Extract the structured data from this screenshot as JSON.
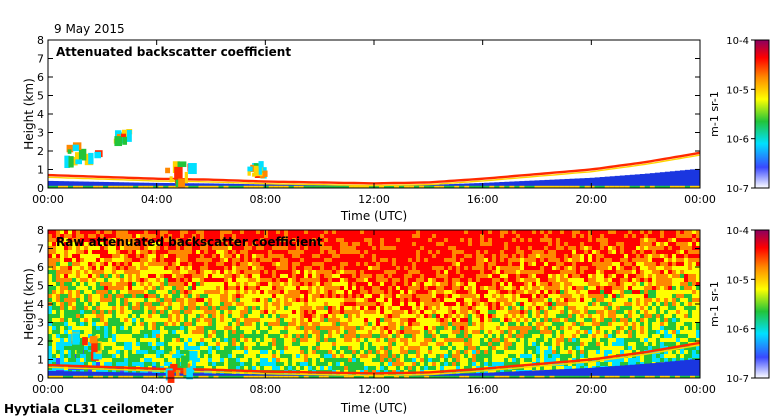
{
  "date_label": "9 May 2015",
  "footer_label": "Hyytiala CL31 ceilometer",
  "colors": {
    "background": "#ffffff",
    "frame": "#000000",
    "surface_band": "#1a36e0",
    "cloud_top": "#ff2a00",
    "cloud_mid": "#ffd400",
    "cloud_low": "#22c43a"
  },
  "chart_data": [
    {
      "type": "heatmap",
      "title": "Attenuated backscatter coefficient",
      "xlabel": "Time (UTC)",
      "ylabel": "Height (km)",
      "x_ticks": [
        "00:00",
        "04:00",
        "08:00",
        "12:00",
        "16:00",
        "20:00",
        "00:00"
      ],
      "x_tick_hours": [
        0,
        4,
        8,
        12,
        16,
        20,
        24
      ],
      "xlim": [
        0,
        24
      ],
      "y_ticks": [
        "0",
        "1",
        "2",
        "3",
        "4",
        "5",
        "6",
        "7",
        "8"
      ],
      "ylim": [
        0,
        8
      ],
      "colorbar": {
        "scale": "log",
        "range": [
          1e-07,
          0.0001
        ],
        "tick_labels": [
          "10-4",
          "10-5",
          "10-6",
          "10-7"
        ],
        "unit_label": "m-1 sr-1",
        "colormap": [
          "#ffffff",
          "#3a49ff",
          "#00e0ff",
          "#22c43a",
          "#ffff00",
          "#ff8800",
          "#ff0000",
          "#8c0060"
        ]
      },
      "boundary_layer_top_km": {
        "hours": [
          0,
          2,
          4,
          6,
          8,
          10,
          12,
          14,
          16,
          18,
          20,
          22,
          24
        ],
        "values": [
          0.7,
          0.6,
          0.5,
          0.45,
          0.35,
          0.3,
          0.25,
          0.3,
          0.5,
          0.75,
          1.0,
          1.4,
          1.9
        ]
      },
      "cloud_patches": [
        {
          "t0": 0.6,
          "t1": 1.8,
          "h0": 1.4,
          "h1": 2.5
        },
        {
          "t0": 2.4,
          "t1": 3.0,
          "h0": 2.6,
          "h1": 3.2
        },
        {
          "t0": 4.3,
          "t1": 5.2,
          "h0": 0.4,
          "h1": 1.6
        },
        {
          "t0": 7.3,
          "t1": 8.0,
          "h0": 0.8,
          "h1": 1.6
        }
      ]
    },
    {
      "type": "heatmap",
      "title": "Raw attenuated backscatter coefficient",
      "xlabel": "Time (UTC)",
      "ylabel": "Height (km)",
      "x_ticks": [
        "00:00",
        "04:00",
        "08:00",
        "12:00",
        "16:00",
        "20:00",
        "00:00"
      ],
      "x_tick_hours": [
        0,
        4,
        8,
        12,
        16,
        20,
        24
      ],
      "xlim": [
        0,
        24
      ],
      "y_ticks": [
        "0",
        "1",
        "2",
        "3",
        "4",
        "5",
        "6",
        "7",
        "8"
      ],
      "ylim": [
        0,
        8
      ],
      "colorbar": {
        "scale": "log",
        "range": [
          1e-07,
          0.0001
        ],
        "tick_labels": [
          "10-4",
          "10-5",
          "10-6",
          "10-7"
        ],
        "unit_label": "m-1 sr-1",
        "colormap": [
          "#ffffff",
          "#3a49ff",
          "#00e0ff",
          "#22c43a",
          "#ffff00",
          "#ff8800",
          "#ff0000",
          "#8c0060"
        ]
      },
      "boundary_layer_top_km": {
        "hours": [
          0,
          2,
          4,
          6,
          8,
          10,
          12,
          14,
          16,
          18,
          20,
          22,
          24
        ],
        "values": [
          0.7,
          0.6,
          0.5,
          0.45,
          0.35,
          0.3,
          0.25,
          0.3,
          0.5,
          0.75,
          1.0,
          1.4,
          1.9
        ]
      },
      "cloud_patches": [
        {
          "t0": 0.6,
          "t1": 1.8,
          "h0": 1.4,
          "h1": 2.5
        },
        {
          "t0": 4.3,
          "t1": 5.2,
          "h0": 0.4,
          "h1": 1.6
        }
      ]
    }
  ]
}
